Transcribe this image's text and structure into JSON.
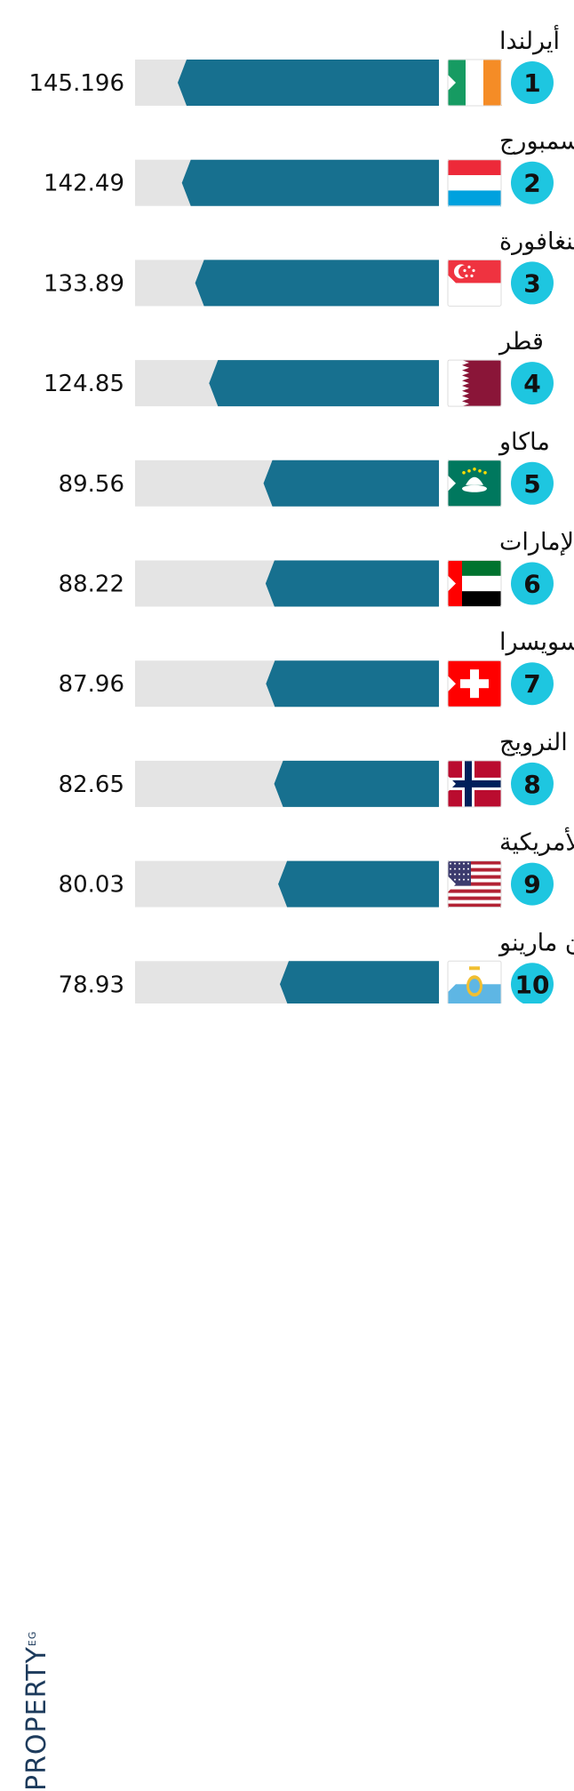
{
  "brand": {
    "name": "PROPERTY",
    "suffix": "EG"
  },
  "colors": {
    "bar": "#17708f",
    "track": "#e4e4e4",
    "badge": "#1ec6e0",
    "text": "#111111"
  },
  "chart_data": {
    "type": "bar",
    "orientation": "horizontal",
    "title": "",
    "xlabel": "",
    "ylabel": "",
    "xlim": [
      0,
      145.196
    ],
    "grid": false,
    "categories": [
      "أيرلندا",
      "لوكسمبورج",
      "سنغافورة",
      "قطر",
      "ماكاو",
      "الإمارات",
      "سويسرا",
      "النرويج",
      "الولايات المتحدة الأمريكية",
      "سان مارينو"
    ],
    "values": [
      145.196,
      142.49,
      133.89,
      124.85,
      89.56,
      88.22,
      87.96,
      82.65,
      80.03,
      78.93
    ],
    "value_labels": [
      "145.196",
      "142.49",
      "133.89",
      "124.85",
      "89.56",
      "88.22",
      "87.96",
      "82.65",
      "80.03",
      "78.93"
    ],
    "ranks": [
      "1",
      "2",
      "3",
      "4",
      "5",
      "6",
      "7",
      "8",
      "9",
      "10"
    ],
    "flags": [
      "ireland-flag-icon",
      "luxembourg-flag-icon",
      "singapore-flag-icon",
      "qatar-flag-icon",
      "macau-flag-icon",
      "uae-flag-icon",
      "switzerland-flag-icon",
      "norway-flag-icon",
      "usa-flag-icon",
      "san-marino-flag-icon"
    ]
  }
}
